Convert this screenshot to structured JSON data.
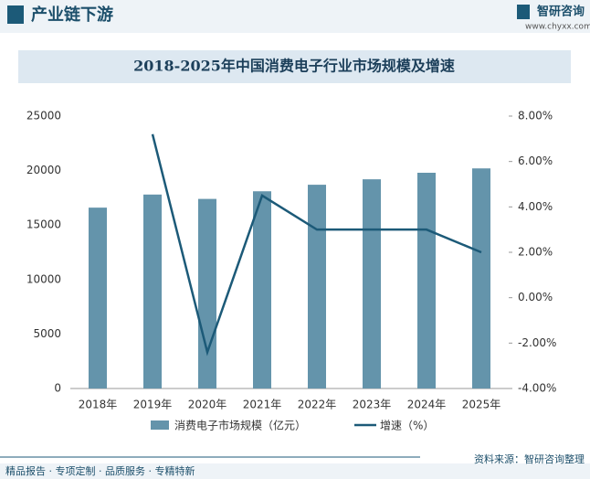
{
  "header": {
    "title": "产业链下游",
    "brand": "智研咨询",
    "url": "www.chyxx.com"
  },
  "chart_data": {
    "type": "bar_line",
    "title": "2018-2025年中国消费电子行业市场规模及增速",
    "categories": [
      "2018年",
      "2019年",
      "2020年",
      "2021年",
      "2022年",
      "2023年",
      "2024年",
      "2025年"
    ],
    "series": [
      {
        "name": "消费电子市场规模（亿元）",
        "type": "bar",
        "color": "#6494ab",
        "values": [
          16600,
          17800,
          17400,
          18100,
          18700,
          19200,
          19800,
          20200
        ]
      },
      {
        "name": "增速（%）",
        "type": "line",
        "axis": "y2",
        "color": "#1c5a78",
        "values": [
          null,
          7.2,
          -2.4,
          4.5,
          3.0,
          3.0,
          3.0,
          2.0
        ]
      }
    ],
    "ylim": [
      0,
      25000
    ],
    "yticks": [
      0,
      5000,
      10000,
      15000,
      20000,
      25000
    ],
    "y2lim": [
      -4,
      8
    ],
    "y2ticks": [
      {
        "value": 8,
        "label": "8.00%"
      },
      {
        "value": 6,
        "label": "6.00%"
      },
      {
        "value": 4,
        "label": "4.00%"
      },
      {
        "value": 2,
        "label": "2.00%"
      },
      {
        "value": 0,
        "label": "0.00%"
      },
      {
        "value": -2,
        "label": "-2.00%"
      },
      {
        "value": -4,
        "label": "-4.00%"
      }
    ],
    "legend": "bottom"
  },
  "footer": {
    "left": "精品报告 · 专项定制 · 品质服务 · 专精特新",
    "source": "资料来源：智研咨询整理"
  }
}
